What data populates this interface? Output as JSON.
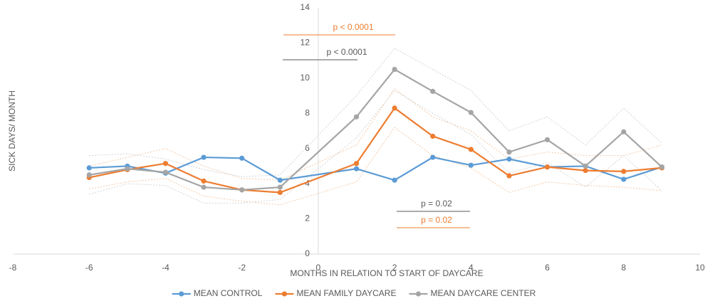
{
  "chart_data": {
    "type": "line",
    "xlabel": "MONTHS IN RELATION TO START OF DAYCARE",
    "ylabel": "SICK DAYS/ MONTH",
    "x": [
      -6,
      -5,
      -4,
      -3,
      -2,
      -1,
      1,
      2,
      3,
      4,
      5,
      6,
      7,
      8,
      9
    ],
    "series": [
      {
        "name": "MEAN CONTROL",
        "color": "#5b9bd5",
        "values": [
          4.9,
          5.0,
          4.6,
          5.5,
          5.45,
          4.2,
          4.85,
          4.2,
          5.5,
          5.05,
          5.4,
          4.95,
          5.0,
          4.25,
          4.95
        ]
      },
      {
        "name": "MEAN FAMILY DAYCARE",
        "color": "#ed7d31",
        "values": [
          4.35,
          4.8,
          5.15,
          4.15,
          3.65,
          3.5,
          5.15,
          8.3,
          6.7,
          5.95,
          4.45,
          4.95,
          4.75,
          4.7,
          4.9
        ]
      },
      {
        "name": "MEAN DAYCARE CENTER",
        "color": "#a5a5a5",
        "values": [
          4.5,
          4.85,
          4.65,
          3.8,
          3.65,
          3.8,
          7.8,
          10.5,
          9.25,
          8.05,
          5.8,
          6.5,
          5.0,
          6.95,
          4.95
        ]
      }
    ],
    "bands": [
      {
        "color": "#f4c9a6",
        "lower": [
          3.7,
          4.1,
          4.3,
          3.3,
          3.0,
          2.8,
          4.1,
          7.2,
          5.6,
          4.9,
          3.5,
          4.1,
          3.9,
          3.8,
          3.6
        ],
        "upper": [
          5.0,
          5.5,
          6.0,
          5.0,
          4.3,
          4.2,
          6.2,
          9.4,
          7.8,
          7.0,
          5.4,
          5.8,
          5.6,
          5.6,
          6.2
        ]
      },
      {
        "color": "#d4d4d4",
        "lower": [
          3.4,
          4.0,
          3.9,
          2.9,
          2.9,
          3.1,
          6.6,
          9.3,
          8.0,
          6.8,
          4.6,
          5.2,
          3.8,
          5.6,
          3.6
        ],
        "upper": [
          5.6,
          5.7,
          5.4,
          4.8,
          4.4,
          4.5,
          9.0,
          11.7,
          10.5,
          9.3,
          7.0,
          7.8,
          6.2,
          8.3,
          6.3
        ]
      }
    ],
    "annotations": [
      {
        "text": "p < 0.0001",
        "color": "#ed7d31"
      },
      {
        "text": "p < 0.0001",
        "color": "#595959"
      },
      {
        "text": "p = 0.02",
        "color": "#595959"
      },
      {
        "text": "p = 0.02",
        "color": "#ed7d31"
      }
    ],
    "xlim": [
      -8,
      10
    ],
    "xticks": [
      -8,
      -6,
      -4,
      -2,
      0,
      2,
      4,
      6,
      8,
      10
    ],
    "ylim": [
      0,
      14
    ],
    "yticks": [
      0,
      2,
      4,
      6,
      8,
      10,
      12,
      14
    ]
  }
}
